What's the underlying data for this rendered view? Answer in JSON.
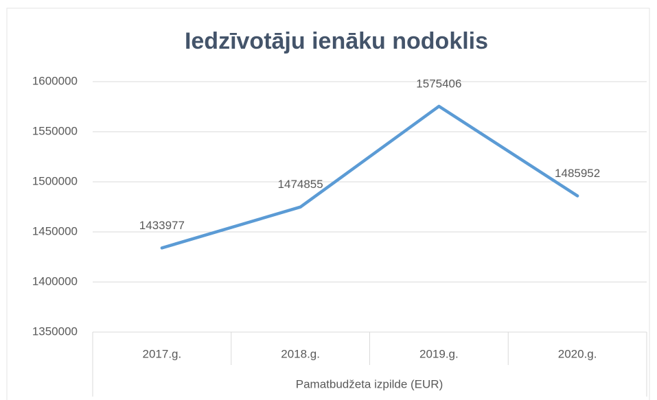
{
  "chart_data": {
    "type": "line",
    "title": "Iedzīvotāju ienāku nodoklis",
    "categories": [
      "2017.g.",
      "2018.g.",
      "2019.g.",
      "2020.g."
    ],
    "category_group": "Pamatbudžeta izpilde (EUR)",
    "series": [
      {
        "name": "Iedzīvotāju ienāku nodoklis",
        "color": "#5b9bd5",
        "values": [
          1433977,
          1474855,
          1575406,
          1485952
        ]
      }
    ],
    "ylim": [
      1350000,
      1600000
    ],
    "yticks": [
      1350000,
      1400000,
      1450000,
      1500000,
      1550000,
      1600000
    ],
    "grid": true
  }
}
